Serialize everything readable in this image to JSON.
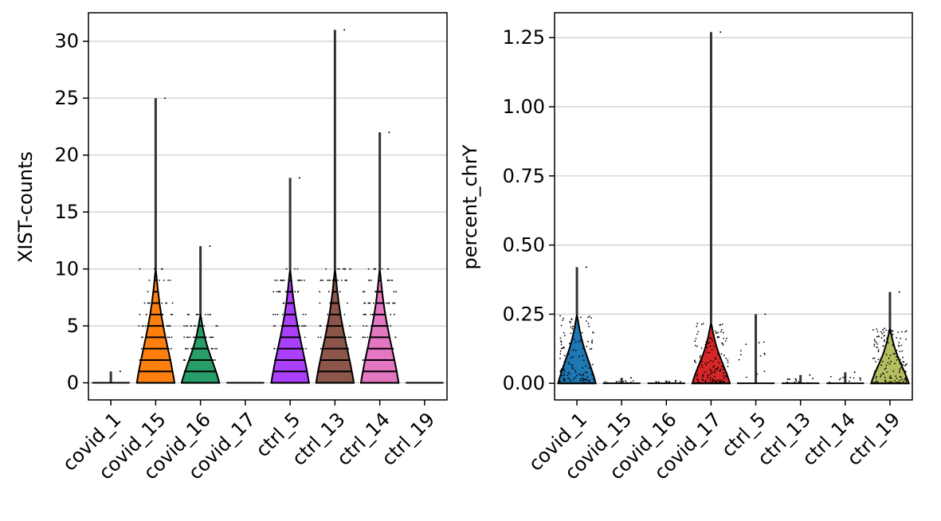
{
  "chart_data": [
    {
      "type": "violin",
      "ylabel": "XIST-counts",
      "xlabel": "",
      "ylim": [
        -1.5,
        32.5
      ],
      "yticks": [
        0,
        5,
        10,
        15,
        20,
        25,
        30
      ],
      "grid": "horizontal",
      "categories": [
        "covid_1",
        "covid_15",
        "covid_16",
        "covid_17",
        "ctrl_5",
        "ctrl_13",
        "ctrl_14",
        "ctrl_19"
      ],
      "max": [
        1,
        25,
        12,
        0,
        18,
        31,
        22,
        0
      ],
      "violin_top": [
        0,
        10,
        6,
        0,
        10,
        10,
        10,
        0
      ],
      "median": [
        0,
        2,
        1,
        0,
        2,
        2,
        2,
        0
      ],
      "colors": [
        "#1f77b4",
        "#ff7f0e",
        "#279e68",
        "#d62728",
        "#aa40fc",
        "#8c564b",
        "#e377c2",
        "#b5bd61"
      ]
    },
    {
      "type": "violin",
      "ylabel": "percent_chrY",
      "xlabel": "",
      "ylim": [
        -0.06,
        1.34
      ],
      "yticks": [
        "0.00",
        "0.25",
        "0.50",
        "0.75",
        "1.00",
        "1.25"
      ],
      "grid": "horizontal",
      "categories": [
        "covid_1",
        "covid_15",
        "covid_16",
        "covid_17",
        "ctrl_5",
        "ctrl_13",
        "ctrl_14",
        "ctrl_19"
      ],
      "max": [
        0.42,
        0.02,
        0.01,
        1.27,
        0.25,
        0.03,
        0.04,
        0.33
      ],
      "violin_top": [
        0.25,
        0,
        0,
        0.22,
        0,
        0,
        0,
        0.2
      ],
      "median": [
        0.07,
        0,
        0,
        0.06,
        0,
        0,
        0,
        0.07
      ],
      "colors": [
        "#1f77b4",
        "#ff7f0e",
        "#279e68",
        "#d62728",
        "#aa40fc",
        "#8c564b",
        "#e377c2",
        "#b5bd61"
      ]
    }
  ]
}
